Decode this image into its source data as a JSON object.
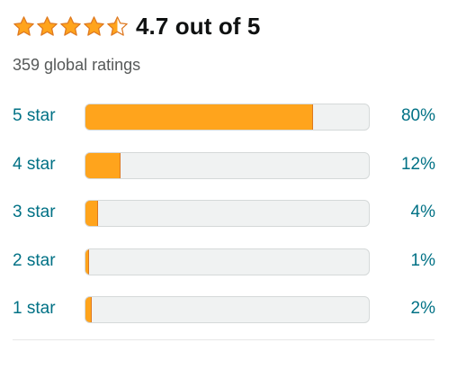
{
  "summary": {
    "rating_text": "4.7 out of 5",
    "rating_value": 4.7,
    "rating_max": 5,
    "total_ratings": "359 global ratings"
  },
  "colors": {
    "star": "#ffa41c",
    "star_stroke": "#de7921",
    "bar_fill": "#ffa41c",
    "bar_track": "#f0f2f2",
    "link": "#007185"
  },
  "histogram": [
    {
      "label": "5 star",
      "percent_text": "80%",
      "percent": 80
    },
    {
      "label": "4 star",
      "percent_text": "12%",
      "percent": 12
    },
    {
      "label": "3 star",
      "percent_text": "4%",
      "percent": 4
    },
    {
      "label": "2 star",
      "percent_text": "1%",
      "percent": 1
    },
    {
      "label": "1 star",
      "percent_text": "2%",
      "percent": 2
    }
  ]
}
